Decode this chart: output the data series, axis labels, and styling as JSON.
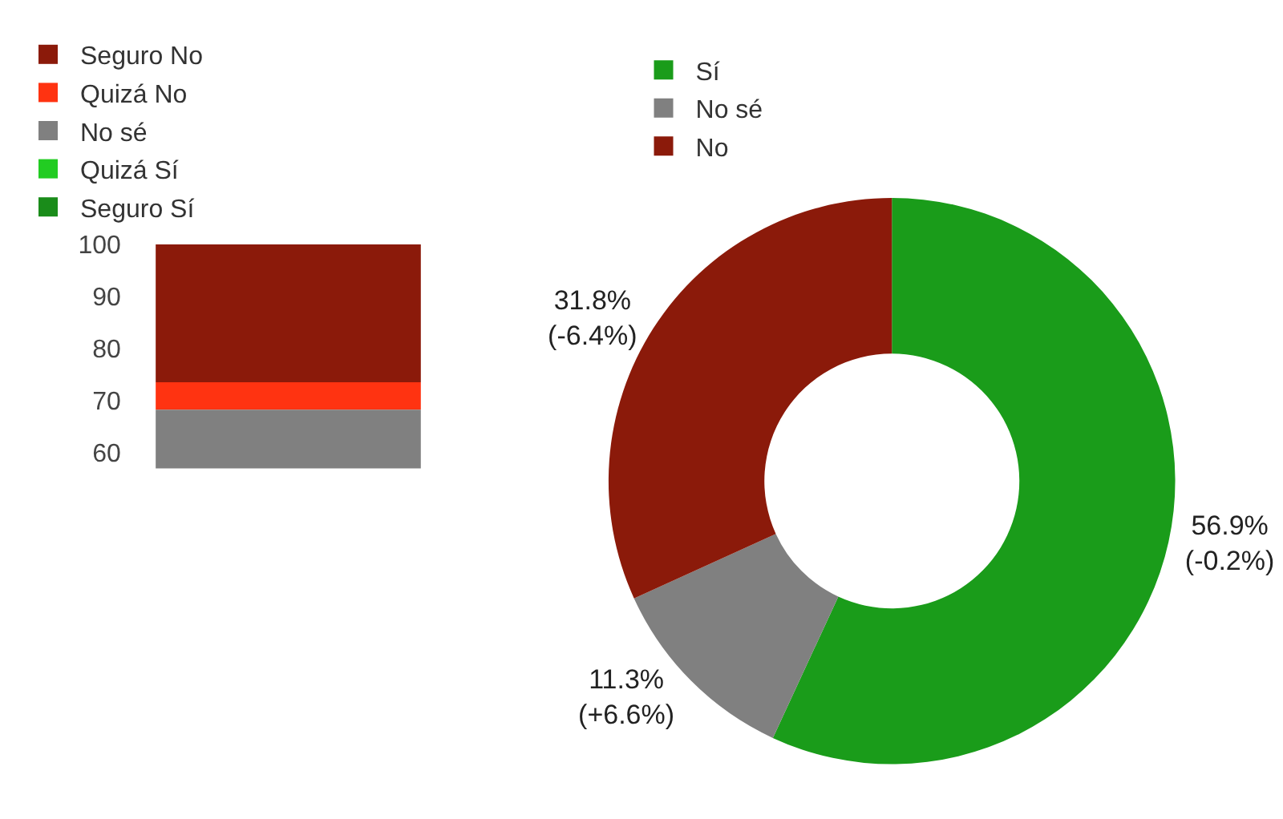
{
  "chart_data": [
    {
      "type": "bar",
      "categories": [
        null
      ],
      "ylim": [
        0,
        100
      ],
      "yticks": [
        60,
        70,
        80,
        90,
        100
      ],
      "grid": false,
      "legend": "top left",
      "series": [
        {
          "name": "Seguro No",
          "color": "#8b1a0a",
          "values": [
            26.5
          ],
          "base": [
            73.5
          ]
        },
        {
          "name": "Quizá No",
          "color": "#ff3311",
          "values": [
            5.3
          ],
          "base": [
            68.2
          ]
        },
        {
          "name": "No sé",
          "color": "#808080",
          "values": [
            11.3
          ],
          "base": [
            56.9
          ]
        },
        {
          "name": "Quizá Sí",
          "color": "#22cc22",
          "values": [
            null
          ],
          "base": [
            null
          ]
        },
        {
          "name": "Seguro Sí",
          "color": "#1a8c1a",
          "values": [
            null
          ],
          "base": [
            null
          ]
        }
      ]
    },
    {
      "type": "donut",
      "categories": [
        "Sí",
        "No sé",
        "No"
      ],
      "values": [
        56.9,
        11.3,
        31.8
      ],
      "colors": [
        "#1a9c1a",
        "#808080",
        "#8b1a0a"
      ],
      "legend": "top left",
      "value_labels": [
        "56.9%\n(-0.2%)",
        "11.3%\n(+6.6%)",
        "31.8%\n(-6.4%)"
      ]
    }
  ]
}
